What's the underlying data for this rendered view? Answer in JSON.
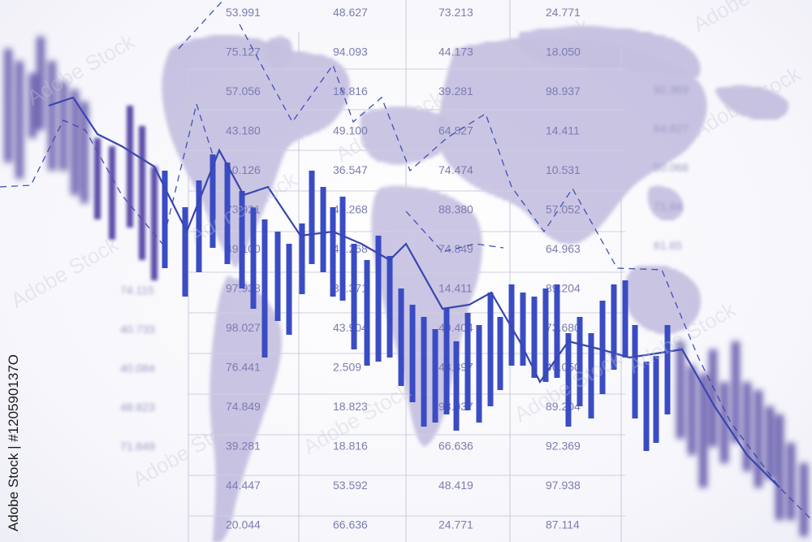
{
  "stock_id": "Adobe Stock | #120590137O",
  "watermark": "Adobe Stock",
  "colors": {
    "bar": "#3a4cc4",
    "bar_blur": "#5a4aa8",
    "map": "#8a80c0",
    "grid": "#c8c8dc",
    "text": "#7c7cb0"
  },
  "table": {
    "columns": [
      [
        "53.991",
        "75.127",
        "57.056",
        "43.180",
        "40.126",
        "73.921",
        "49.100",
        "97.938",
        "98.027",
        "76.441",
        "74.849",
        "39.281",
        "44.447",
        "20.044"
      ],
      [
        "48.627",
        "94.093",
        "18.816",
        "49.100",
        "36.547",
        "42.268",
        "42.268",
        "38.371",
        "43.904",
        "2.509",
        "18.823",
        "18.816",
        "53.592",
        "66.636"
      ],
      [
        "73.213",
        "44.173",
        "39.281",
        "64.827",
        "74.474",
        "88.380",
        "74.849",
        "14.411",
        "40.404",
        "43.897",
        "98.937",
        "66.636",
        "48.419",
        "24.771"
      ],
      [
        "24.771",
        "18.050",
        "98.937",
        "14.411",
        "10.531",
        "57.052",
        "64.963",
        "89.204",
        "73.680",
        "46.050",
        "89.204",
        "92.369",
        "97.938",
        "87.114"
      ]
    ],
    "right_column": [
      "92.369",
      "64.827",
      "50.068",
      "71.84",
      "61.65"
    ],
    "left_column": [
      "74.115",
      "40.733",
      "40.084",
      "48.823",
      "71.649"
    ]
  }
}
